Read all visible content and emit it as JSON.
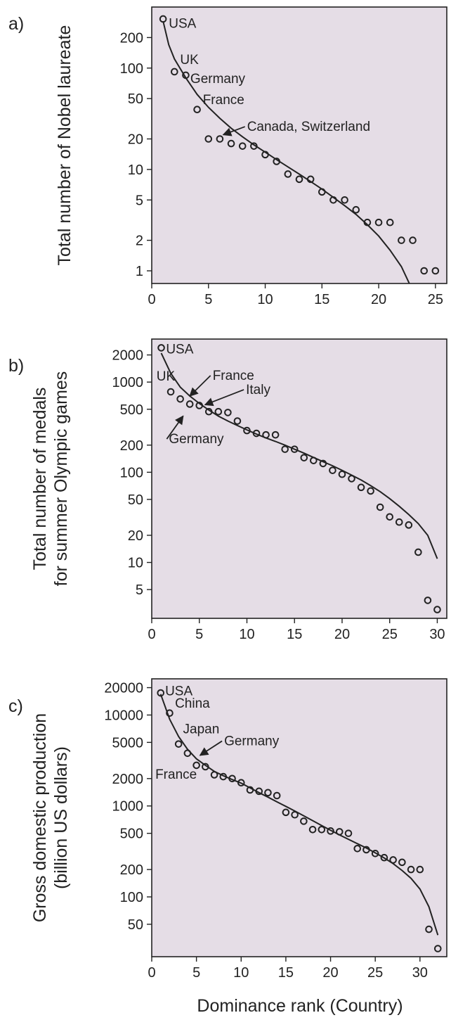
{
  "xlabel": "Dominance rank (Country)",
  "colors": {
    "plot_bg": "#e5dde6",
    "ink": "#222222"
  },
  "chart_data": [
    {
      "type": "scatter",
      "panel_letter": "a)",
      "ylabel": [
        "Total number of Nobel laureate"
      ],
      "xlim": [
        0,
        26
      ],
      "ylim": [
        0.75,
        400
      ],
      "yscale": "log",
      "xticks": [
        0,
        5,
        10,
        15,
        20,
        25
      ],
      "yticks": [
        1,
        2,
        5,
        10,
        20,
        50,
        100,
        200
      ],
      "grid": false,
      "series": [
        {
          "marker": "circle",
          "points": [
            [
              1,
              305
            ],
            [
              2,
              92
            ],
            [
              3,
              85
            ],
            [
              4,
              39
            ],
            [
              5,
              20
            ],
            [
              6,
              20
            ],
            [
              7,
              18
            ],
            [
              8,
              17
            ],
            [
              9,
              17
            ],
            [
              10,
              14
            ],
            [
              11,
              12
            ],
            [
              12,
              9
            ],
            [
              13,
              8
            ],
            [
              14,
              8
            ],
            [
              15,
              6
            ],
            [
              16,
              5
            ],
            [
              17,
              5
            ],
            [
              18,
              4
            ],
            [
              19,
              3
            ],
            [
              20,
              3
            ],
            [
              21,
              3
            ],
            [
              22,
              2
            ],
            [
              23,
              2
            ],
            [
              24,
              1
            ],
            [
              25,
              1
            ]
          ]
        },
        {
          "style": "line",
          "points": [
            [
              1,
              290
            ],
            [
              1.5,
              170
            ],
            [
              2,
              123
            ],
            [
              3,
              80
            ],
            [
              4,
              55
            ],
            [
              5,
              41
            ],
            [
              6,
              32
            ],
            [
              7,
              25.5
            ],
            [
              8,
              21
            ],
            [
              9,
              17.5
            ],
            [
              10,
              14.8
            ],
            [
              11,
              12.5
            ],
            [
              12,
              10.6
            ],
            [
              13,
              9
            ],
            [
              14,
              7.6
            ],
            [
              15,
              6.4
            ],
            [
              16,
              5.3
            ],
            [
              17,
              4.4
            ],
            [
              18,
              3.6
            ],
            [
              19,
              2.85
            ],
            [
              20,
              2.2
            ],
            [
              21,
              1.6
            ],
            [
              22,
              1.1
            ],
            [
              22.7,
              0.75
            ]
          ]
        }
      ],
      "annotations": [
        {
          "text": "USA",
          "x": 1.5,
          "y": 250
        },
        {
          "text": "UK",
          "x": 2.5,
          "y": 110
        },
        {
          "text": "Germany",
          "x": 3.4,
          "y": 71
        },
        {
          "text": "France",
          "x": 4.5,
          "y": 44
        },
        {
          "text": "Canada, Switzerland",
          "x": 8.4,
          "y": 24,
          "arrow_to": [
            6.3,
            22
          ]
        }
      ]
    },
    {
      "type": "scatter",
      "panel_letter": "b)",
      "ylabel": [
        "Total number of medals",
        "for summer Olympic games"
      ],
      "xlim": [
        0,
        31
      ],
      "ylim": [
        2.4,
        3000
      ],
      "yscale": "log",
      "xticks": [
        0,
        5,
        10,
        15,
        20,
        25,
        30
      ],
      "yticks": [
        5,
        10,
        20,
        50,
        100,
        200,
        500,
        1000,
        2000
      ],
      "grid": false,
      "series": [
        {
          "marker": "circle",
          "points": [
            [
              1,
              2400
            ],
            [
              2,
              780
            ],
            [
              3,
              650
            ],
            [
              4,
              570
            ],
            [
              5,
              550
            ],
            [
              6,
              470
            ],
            [
              7,
              470
            ],
            [
              8,
              460
            ],
            [
              9,
              370
            ],
            [
              10,
              290
            ],
            [
              11,
              270
            ],
            [
              12,
              260
            ],
            [
              13,
              260
            ],
            [
              14,
              180
            ],
            [
              15,
              180
            ],
            [
              16,
              145
            ],
            [
              17,
              135
            ],
            [
              18,
              125
            ],
            [
              19,
              105
            ],
            [
              20,
              95
            ],
            [
              21,
              85
            ],
            [
              22,
              68
            ],
            [
              23,
              62
            ],
            [
              24,
              41
            ],
            [
              25,
              32
            ],
            [
              26,
              28
            ],
            [
              27,
              26
            ],
            [
              28,
              13
            ],
            [
              29,
              3.8
            ],
            [
              30,
              3.0
            ]
          ]
        },
        {
          "style": "line",
          "points": [
            [
              1,
              2100
            ],
            [
              2,
              1250
            ],
            [
              3,
              880
            ],
            [
              4,
              700
            ],
            [
              5,
              580
            ],
            [
              6,
              490
            ],
            [
              7,
              420
            ],
            [
              8,
              370
            ],
            [
              9,
              330
            ],
            [
              10,
              295
            ],
            [
              11,
              265
            ],
            [
              12,
              240
            ],
            [
              13,
              220
            ],
            [
              14,
              200
            ],
            [
              15,
              180
            ],
            [
              16,
              163
            ],
            [
              17,
              146
            ],
            [
              18,
              131
            ],
            [
              19,
              118
            ],
            [
              20,
              105
            ],
            [
              21,
              93
            ],
            [
              22,
              82
            ],
            [
              23,
              71
            ],
            [
              24,
              61
            ],
            [
              25,
              51
            ],
            [
              26,
              42
            ],
            [
              27,
              34
            ],
            [
              28,
              27
            ],
            [
              29,
              20
            ],
            [
              30,
              11
            ]
          ]
        }
      ],
      "annotations": [
        {
          "text": "USA",
          "x": 1.5,
          "y": 2080
        },
        {
          "text": "UK",
          "x": 0.5,
          "y": 1040
        },
        {
          "text": "France",
          "x": 6.4,
          "y": 1060,
          "arrow_to": [
            4,
            700
          ]
        },
        {
          "text": "Italy",
          "x": 9.9,
          "y": 740,
          "arrow_to": [
            5.6,
            560
          ]
        },
        {
          "text": "Germany",
          "x": 1.8,
          "y": 210,
          "arrow_to": [
            3.3,
            420
          ]
        }
      ]
    },
    {
      "type": "scatter",
      "panel_letter": "c)",
      "ylabel": [
        "Gross domestic production",
        "(billion US dollars)"
      ],
      "xlim": [
        0,
        33
      ],
      "ylim": [
        22,
        25000
      ],
      "yscale": "log",
      "xticks": [
        0,
        5,
        10,
        15,
        20,
        25,
        30
      ],
      "yticks": [
        50,
        100,
        200,
        500,
        1000,
        2000,
        5000,
        10000,
        20000
      ],
      "grid": false,
      "series": [
        {
          "marker": "circle",
          "points": [
            [
              1,
              17500
            ],
            [
              2,
              10500
            ],
            [
              3,
              4800
            ],
            [
              4,
              3800
            ],
            [
              5,
              2800
            ],
            [
              6,
              2700
            ],
            [
              7,
              2200
            ],
            [
              8,
              2100
            ],
            [
              9,
              2000
            ],
            [
              10,
              1800
            ],
            [
              11,
              1500
            ],
            [
              12,
              1450
            ],
            [
              13,
              1400
            ],
            [
              14,
              1300
            ],
            [
              15,
              850
            ],
            [
              16,
              800
            ],
            [
              17,
              680
            ],
            [
              18,
              550
            ],
            [
              19,
              550
            ],
            [
              20,
              530
            ],
            [
              21,
              520
            ],
            [
              22,
              500
            ],
            [
              23,
              340
            ],
            [
              24,
              330
            ],
            [
              25,
              300
            ],
            [
              26,
              270
            ],
            [
              27,
              255
            ],
            [
              28,
              240
            ],
            [
              29,
              200
            ],
            [
              30,
              200
            ],
            [
              31,
              44
            ],
            [
              32,
              27
            ]
          ]
        },
        {
          "style": "line",
          "points": [
            [
              1,
              17000
            ],
            [
              2,
              9000
            ],
            [
              3,
              5800
            ],
            [
              4,
              4200
            ],
            [
              5,
              3300
            ],
            [
              6,
              2800
            ],
            [
              7,
              2400
            ],
            [
              8,
              2150
            ],
            [
              9,
              1950
            ],
            [
              10,
              1780
            ],
            [
              11,
              1580
            ],
            [
              12,
              1400
            ],
            [
              13,
              1250
            ],
            [
              14,
              1110
            ],
            [
              15,
              990
            ],
            [
              16,
              880
            ],
            [
              17,
              780
            ],
            [
              18,
              690
            ],
            [
              19,
              610
            ],
            [
              20,
              540
            ],
            [
              21,
              480
            ],
            [
              22,
              430
            ],
            [
              23,
              385
            ],
            [
              24,
              345
            ],
            [
              25,
              305
            ],
            [
              26,
              268
            ],
            [
              27,
              232
            ],
            [
              28,
              195
            ],
            [
              29,
              160
            ],
            [
              30,
              122
            ],
            [
              31,
              78
            ],
            [
              32,
              38
            ]
          ]
        }
      ],
      "annotations": [
        {
          "text": "USA",
          "x": 1.5,
          "y": 16500
        },
        {
          "text": "China",
          "x": 2.6,
          "y": 12000
        },
        {
          "text": "Japan",
          "x": 3.5,
          "y": 6300
        },
        {
          "text": "Germany",
          "x": 8.1,
          "y": 4650,
          "arrow_to": [
            5.4,
            3600
          ]
        },
        {
          "text": "France",
          "x": 0.4,
          "y": 2000
        }
      ]
    }
  ]
}
